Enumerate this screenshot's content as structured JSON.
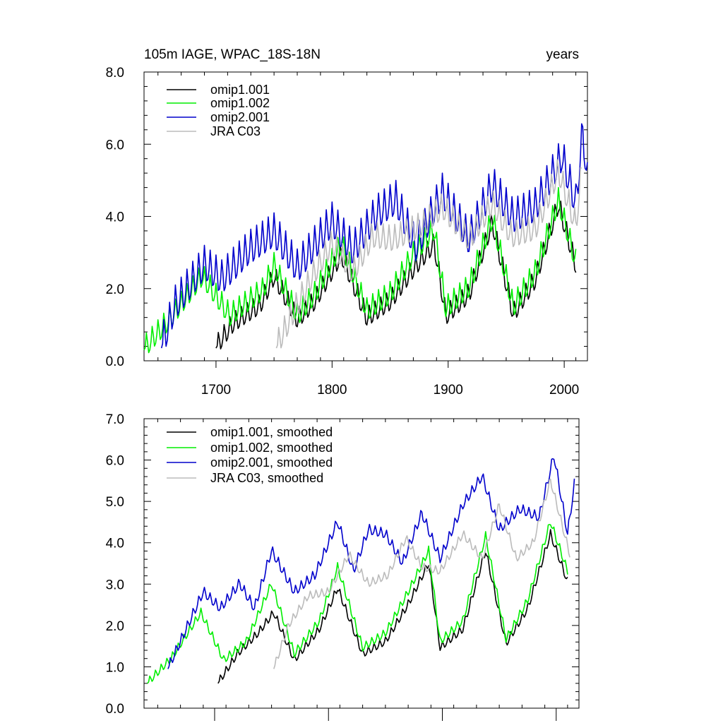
{
  "figure": {
    "title_left": "105m IAGE, WPAC_18S-18N",
    "title_right": "years"
  },
  "colors": {
    "omip1_001": "#000000",
    "omip1_002": "#00ee00",
    "omip2_001": "#0000cc",
    "jra_c03": "#bbbbbb"
  },
  "chart_data": [
    {
      "type": "line",
      "name": "raw",
      "xlim": [
        1638,
        2020
      ],
      "ylim": [
        0,
        8
      ],
      "x_ticks": [
        1700,
        1800,
        1900,
        2000
      ],
      "x_tick_labels": [
        "1700",
        "1800",
        "1900",
        "2000"
      ],
      "y_ticks": [
        0,
        2,
        4,
        6,
        8
      ],
      "y_tick_labels": [
        "0.0",
        "2.0",
        "4.0",
        "6.0",
        "8.0"
      ],
      "show_x_tick_labels": true,
      "legend_position": "top-left",
      "series": [
        {
          "name": "omip1.001",
          "color_key": "omip1_001",
          "start": 1700,
          "end": 2010,
          "anchors": [
            [
              1700,
              0.35
            ],
            [
              1715,
              1.0
            ],
            [
              1738,
              1.5
            ],
            [
              1750,
              2.3
            ],
            [
              1770,
              1.1
            ],
            [
              1785,
              1.6
            ],
            [
              1808,
              2.9
            ],
            [
              1830,
              1.15
            ],
            [
              1850,
              1.6
            ],
            [
              1870,
              2.5
            ],
            [
              1888,
              3.2
            ],
            [
              1898,
              1.2
            ],
            [
              1918,
              1.8
            ],
            [
              1938,
              3.8
            ],
            [
              1956,
              1.25
            ],
            [
              1975,
              2.2
            ],
            [
              1995,
              4.3
            ],
            [
              2010,
              2.6
            ]
          ],
          "amp": 0.35
        },
        {
          "name": "omip1.002",
          "color_key": "omip1_002",
          "start": 1638,
          "end": 2010,
          "anchors": [
            [
              1638,
              0.3
            ],
            [
              1660,
              1.1
            ],
            [
              1688,
              2.3
            ],
            [
              1712,
              1.2
            ],
            [
              1740,
              1.9
            ],
            [
              1750,
              2.6
            ],
            [
              1770,
              1.2
            ],
            [
              1785,
              1.8
            ],
            [
              1808,
              3.2
            ],
            [
              1830,
              1.35
            ],
            [
              1850,
              1.8
            ],
            [
              1870,
              2.9
            ],
            [
              1888,
              3.6
            ],
            [
              1898,
              1.4
            ],
            [
              1918,
              2.0
            ],
            [
              1938,
              3.9
            ],
            [
              1956,
              1.45
            ],
            [
              1975,
              2.4
            ],
            [
              1995,
              4.4
            ],
            [
              2010,
              2.7
            ]
          ],
          "amp": 0.4
        },
        {
          "name": "omip2.001",
          "color_key": "omip2_001",
          "start": 1653,
          "end": 2020,
          "anchors": [
            [
              1653,
              0.35
            ],
            [
              1665,
              1.5
            ],
            [
              1690,
              2.6
            ],
            [
              1705,
              2.2
            ],
            [
              1728,
              3.0
            ],
            [
              1750,
              3.5
            ],
            [
              1770,
              2.5
            ],
            [
              1800,
              3.8
            ],
            [
              1818,
              3.0
            ],
            [
              1838,
              4.0
            ],
            [
              1855,
              4.4
            ],
            [
              1872,
              3.1
            ],
            [
              1895,
              4.6
            ],
            [
              1918,
              3.3
            ],
            [
              1938,
              4.8
            ],
            [
              1956,
              3.9
            ],
            [
              1975,
              4.2
            ],
            [
              1998,
              5.6
            ],
            [
              2010,
              4.3
            ],
            [
              2016,
              6.3
            ],
            [
              2020,
              4.9
            ]
          ],
          "amp": 0.6
        },
        {
          "name": "JRA C03",
          "color_key": "jra_c03",
          "start": 1752,
          "end": 2015,
          "anchors": [
            [
              1752,
              0.35
            ],
            [
              1770,
              1.5
            ],
            [
              1785,
              2.4
            ],
            [
              1800,
              3.2
            ],
            [
              1818,
              2.4
            ],
            [
              1835,
              3.4
            ],
            [
              1852,
              3.3
            ],
            [
              1878,
              3.7
            ],
            [
              1895,
              4.2
            ],
            [
              1918,
              3.3
            ],
            [
              1938,
              4.3
            ],
            [
              1955,
              3.4
            ],
            [
              1975,
              3.6
            ],
            [
              1995,
              5.2
            ],
            [
              2010,
              3.7
            ],
            [
              2015,
              5.2
            ]
          ],
          "amp": 0.45
        }
      ]
    },
    {
      "type": "line",
      "name": "smoothed",
      "xlim": [
        1638,
        2020
      ],
      "ylim": [
        0,
        7
      ],
      "x_ticks": [
        1700,
        1800,
        1900,
        2000
      ],
      "x_tick_labels": [],
      "y_ticks": [
        0,
        1,
        2,
        3,
        4,
        5,
        6,
        7
      ],
      "y_tick_labels": [
        "0.0",
        "1.0",
        "2.0",
        "3.0",
        "4.0",
        "5.0",
        "6.0",
        "7.0"
      ],
      "show_x_tick_labels": false,
      "legend_position": "top-left",
      "series": [
        {
          "name": "omip1.001, smoothed",
          "color_key": "omip1_001",
          "start": 1703,
          "end": 2010,
          "anchors": [
            [
              1703,
              0.6
            ],
            [
              1720,
              1.3
            ],
            [
              1738,
              1.8
            ],
            [
              1752,
              2.3
            ],
            [
              1770,
              1.15
            ],
            [
              1792,
              1.9
            ],
            [
              1808,
              2.9
            ],
            [
              1830,
              1.3
            ],
            [
              1850,
              1.6
            ],
            [
              1870,
              2.5
            ],
            [
              1888,
              3.5
            ],
            [
              1898,
              1.45
            ],
            [
              1918,
              1.9
            ],
            [
              1938,
              3.8
            ],
            [
              1956,
              1.55
            ],
            [
              1975,
              2.4
            ],
            [
              1995,
              4.2
            ],
            [
              2010,
              3.05
            ]
          ],
          "amp": 0.12
        },
        {
          "name": "omip1.002, smoothed",
          "color_key": "omip1_002",
          "start": 1641,
          "end": 2010,
          "anchors": [
            [
              1641,
              0.6
            ],
            [
              1662,
              1.2
            ],
            [
              1688,
              2.3
            ],
            [
              1708,
              1.15
            ],
            [
              1728,
              1.6
            ],
            [
              1750,
              3.0
            ],
            [
              1770,
              1.3
            ],
            [
              1792,
              2.1
            ],
            [
              1808,
              3.4
            ],
            [
              1830,
              1.45
            ],
            [
              1850,
              1.8
            ],
            [
              1870,
              2.8
            ],
            [
              1888,
              3.8
            ],
            [
              1898,
              1.6
            ],
            [
              1918,
              2.1
            ],
            [
              1938,
              4.15
            ],
            [
              1956,
              1.65
            ],
            [
              1975,
              2.6
            ],
            [
              1995,
              4.5
            ],
            [
              2010,
              3.3
            ]
          ],
          "amp": 0.12
        },
        {
          "name": "omip2.001, smoothed",
          "color_key": "omip2_001",
          "start": 1659,
          "end": 2016,
          "anchors": [
            [
              1659,
              0.95
            ],
            [
              1670,
              1.6
            ],
            [
              1690,
              2.8
            ],
            [
              1705,
              2.4
            ],
            [
              1722,
              3.0
            ],
            [
              1735,
              2.4
            ],
            [
              1750,
              3.8
            ],
            [
              1770,
              2.8
            ],
            [
              1788,
              3.2
            ],
            [
              1808,
              4.5
            ],
            [
              1822,
              3.3
            ],
            [
              1835,
              4.3
            ],
            [
              1850,
              4.2
            ],
            [
              1865,
              3.5
            ],
            [
              1882,
              4.7
            ],
            [
              1898,
              3.6
            ],
            [
              1918,
              4.9
            ],
            [
              1935,
              5.6
            ],
            [
              1950,
              4.3
            ],
            [
              1968,
              4.8
            ],
            [
              1985,
              4.6
            ],
            [
              1998,
              6.1
            ],
            [
              2010,
              4.2
            ],
            [
              2016,
              5.4
            ]
          ],
          "amp": 0.15
        },
        {
          "name": "JRA C03, smoothed",
          "color_key": "jra_c03",
          "start": 1752,
          "end": 2012,
          "anchors": [
            [
              1752,
              0.95
            ],
            [
              1765,
              2.0
            ],
            [
              1782,
              2.7
            ],
            [
              1800,
              2.8
            ],
            [
              1818,
              3.7
            ],
            [
              1835,
              3.0
            ],
            [
              1852,
              3.2
            ],
            [
              1868,
              4.1
            ],
            [
              1882,
              3.4
            ],
            [
              1898,
              3.3
            ],
            [
              1918,
              4.2
            ],
            [
              1935,
              3.6
            ],
            [
              1950,
              4.9
            ],
            [
              1965,
              3.6
            ],
            [
              1980,
              4.0
            ],
            [
              1995,
              5.5
            ],
            [
              2012,
              3.7
            ]
          ],
          "amp": 0.12
        }
      ]
    }
  ]
}
